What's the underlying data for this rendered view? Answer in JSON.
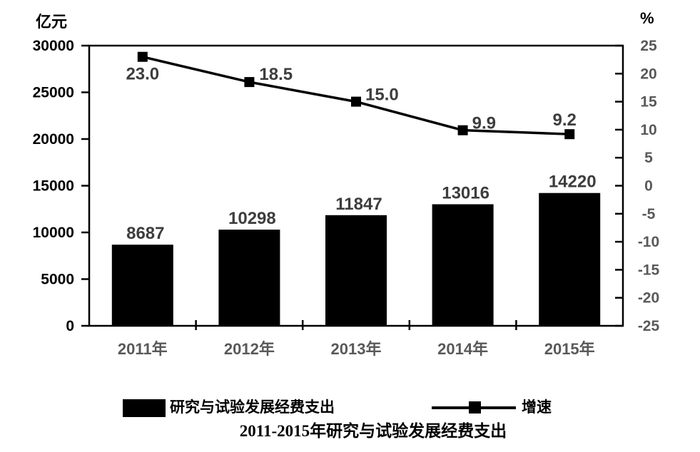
{
  "chart_data": {
    "type": "bar+line",
    "title": "2011-2015年研究与试验发展经费支出",
    "categories": [
      "2011年",
      "2012年",
      "2013年",
      "2014年",
      "2015年"
    ],
    "series": [
      {
        "name": "研究与试验发展经费支出",
        "type": "bar",
        "axis": "left",
        "values": [
          8687,
          10298,
          11847,
          13016,
          14220
        ],
        "labels": [
          "8687",
          "10298",
          "11847",
          "13016",
          "14220"
        ],
        "color": "#000000"
      },
      {
        "name": "增速",
        "type": "line",
        "axis": "right",
        "values": [
          23.0,
          18.5,
          15.0,
          9.9,
          9.2
        ],
        "labels": [
          "23.0",
          "18.5",
          "15.0",
          "9.9",
          "9.2"
        ],
        "color": "#000000",
        "marker": "square"
      }
    ],
    "left_axis": {
      "unit": "亿元",
      "min": 0,
      "max": 30000,
      "step": 5000,
      "tick_labels": [
        "0",
        "5000",
        "10000",
        "15000",
        "20000",
        "25000",
        "30000"
      ]
    },
    "right_axis": {
      "unit": "%",
      "min": -25,
      "max": 25,
      "step": 5,
      "tick_labels": [
        "25",
        "20",
        "15",
        "10",
        "5",
        "0",
        "-5",
        "-10",
        "-15",
        "-20",
        "-25"
      ]
    },
    "grid": false,
    "legend_position": "bottom",
    "colors": {
      "bar": "#000000",
      "line": "#000000",
      "left_axis_text": "#000000",
      "right_axis_text": "#595959",
      "category_text": "#595959",
      "data_label_text": "#3d3d3d",
      "border": "#000000",
      "background": "#ffffff"
    }
  }
}
